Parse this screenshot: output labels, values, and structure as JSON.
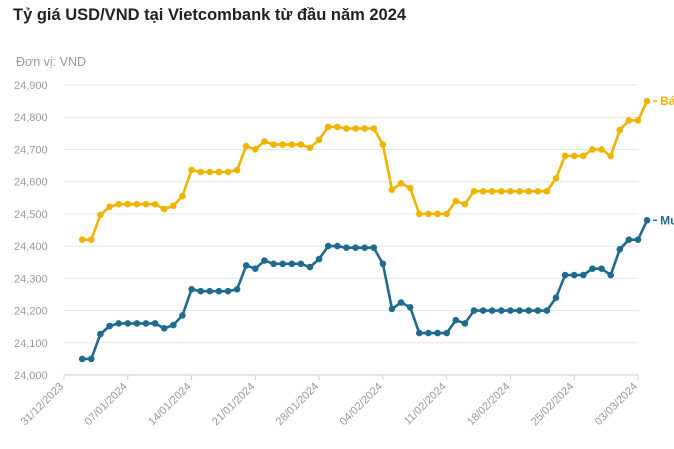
{
  "chart_data": {
    "type": "line",
    "title": "Tỷ giá USD/VND tại Vietcombank từ đầu năm 2024",
    "unit_label": "Đơn vị: VND",
    "ylim": [
      24000,
      24900
    ],
    "y_ticks": [
      "24,000",
      "24,100",
      "24,200",
      "24,300",
      "24,400",
      "24,500",
      "24,600",
      "24,700",
      "24,800",
      "24,900"
    ],
    "x_ticks": [
      "31/12/2023",
      "07/01/2024",
      "14/01/2024",
      "21/01/2024",
      "28/01/2024",
      "04/02/2024",
      "11/02/2024",
      "18/02/2024",
      "25/02/2024",
      "03/03/2024"
    ],
    "xlim": [
      "31/12/2023",
      "03/03/2024"
    ],
    "grid": "horizontal",
    "series": [
      {
        "name": "Bán",
        "color": "#F0B400",
        "points": [
          [
            "02/01/2024",
            24420
          ],
          [
            "03/01/2024",
            24420
          ],
          [
            "04/01/2024",
            24497
          ],
          [
            "05/01/2024",
            24522
          ],
          [
            "06/01/2024",
            24530
          ],
          [
            "07/01/2024",
            24530
          ],
          [
            "08/01/2024",
            24530
          ],
          [
            "09/01/2024",
            24530
          ],
          [
            "10/01/2024",
            24530
          ],
          [
            "11/01/2024",
            24515
          ],
          [
            "12/01/2024",
            24525
          ],
          [
            "13/01/2024",
            24555
          ],
          [
            "14/01/2024",
            24636
          ],
          [
            "15/01/2024",
            24630
          ],
          [
            "16/01/2024",
            24630
          ],
          [
            "17/01/2024",
            24630
          ],
          [
            "18/01/2024",
            24630
          ],
          [
            "19/01/2024",
            24636
          ],
          [
            "20/01/2024",
            24710
          ],
          [
            "21/01/2024",
            24700
          ],
          [
            "22/01/2024",
            24725
          ],
          [
            "23/01/2024",
            24715
          ],
          [
            "24/01/2024",
            24715
          ],
          [
            "25/01/2024",
            24715
          ],
          [
            "26/01/2024",
            24715
          ],
          [
            "27/01/2024",
            24705
          ],
          [
            "28/01/2024",
            24730
          ],
          [
            "29/01/2024",
            24770
          ],
          [
            "30/01/2024",
            24770
          ],
          [
            "31/01/2024",
            24765
          ],
          [
            "01/02/2024",
            24765
          ],
          [
            "02/02/2024",
            24765
          ],
          [
            "03/02/2024",
            24765
          ],
          [
            "04/02/2024",
            24715
          ],
          [
            "05/02/2024",
            24575
          ],
          [
            "06/02/2024",
            24595
          ],
          [
            "07/02/2024",
            24580
          ],
          [
            "08/02/2024",
            24500
          ],
          [
            "09/02/2024",
            24500
          ],
          [
            "10/02/2024",
            24500
          ],
          [
            "11/02/2024",
            24500
          ],
          [
            "12/02/2024",
            24540
          ],
          [
            "13/02/2024",
            24530
          ],
          [
            "14/02/2024",
            24570
          ],
          [
            "15/02/2024",
            24570
          ],
          [
            "16/02/2024",
            24570
          ],
          [
            "17/02/2024",
            24570
          ],
          [
            "18/02/2024",
            24570
          ],
          [
            "19/02/2024",
            24570
          ],
          [
            "20/02/2024",
            24570
          ],
          [
            "21/02/2024",
            24570
          ],
          [
            "22/02/2024",
            24570
          ],
          [
            "23/02/2024",
            24610
          ],
          [
            "24/02/2024",
            24680
          ],
          [
            "25/02/2024",
            24680
          ],
          [
            "26/02/2024",
            24680
          ],
          [
            "27/02/2024",
            24700
          ],
          [
            "28/02/2024",
            24700
          ],
          [
            "29/02/2024",
            24680
          ],
          [
            "01/03/2024",
            24760
          ],
          [
            "02/03/2024",
            24790
          ],
          [
            "03/03/2024",
            24790
          ],
          [
            "04/03/2024",
            24850
          ]
        ]
      },
      {
        "name": "Mua",
        "color": "#1F6A8F",
        "points": [
          [
            "02/01/2024",
            24050
          ],
          [
            "03/01/2024",
            24050
          ],
          [
            "04/01/2024",
            24127
          ],
          [
            "05/01/2024",
            24152
          ],
          [
            "06/01/2024",
            24160
          ],
          [
            "07/01/2024",
            24160
          ],
          [
            "08/01/2024",
            24160
          ],
          [
            "09/01/2024",
            24160
          ],
          [
            "10/01/2024",
            24160
          ],
          [
            "11/01/2024",
            24145
          ],
          [
            "12/01/2024",
            24155
          ],
          [
            "13/01/2024",
            24185
          ],
          [
            "14/01/2024",
            24266
          ],
          [
            "15/01/2024",
            24260
          ],
          [
            "16/01/2024",
            24260
          ],
          [
            "17/01/2024",
            24260
          ],
          [
            "18/01/2024",
            24260
          ],
          [
            "19/01/2024",
            24266
          ],
          [
            "20/01/2024",
            24340
          ],
          [
            "21/01/2024",
            24330
          ],
          [
            "22/01/2024",
            24355
          ],
          [
            "23/01/2024",
            24345
          ],
          [
            "24/01/2024",
            24345
          ],
          [
            "25/01/2024",
            24345
          ],
          [
            "26/01/2024",
            24345
          ],
          [
            "27/01/2024",
            24335
          ],
          [
            "28/01/2024",
            24360
          ],
          [
            "29/01/2024",
            24400
          ],
          [
            "30/01/2024",
            24400
          ],
          [
            "31/01/2024",
            24395
          ],
          [
            "01/02/2024",
            24395
          ],
          [
            "02/02/2024",
            24395
          ],
          [
            "03/02/2024",
            24395
          ],
          [
            "04/02/2024",
            24345
          ],
          [
            "05/02/2024",
            24205
          ],
          [
            "06/02/2024",
            24225
          ],
          [
            "07/02/2024",
            24210
          ],
          [
            "08/02/2024",
            24130
          ],
          [
            "09/02/2024",
            24130
          ],
          [
            "10/02/2024",
            24130
          ],
          [
            "11/02/2024",
            24130
          ],
          [
            "12/02/2024",
            24170
          ],
          [
            "13/02/2024",
            24160
          ],
          [
            "14/02/2024",
            24200
          ],
          [
            "15/02/2024",
            24200
          ],
          [
            "16/02/2024",
            24200
          ],
          [
            "17/02/2024",
            24200
          ],
          [
            "18/02/2024",
            24200
          ],
          [
            "19/02/2024",
            24200
          ],
          [
            "20/02/2024",
            24200
          ],
          [
            "21/02/2024",
            24200
          ],
          [
            "22/02/2024",
            24200
          ],
          [
            "23/02/2024",
            24240
          ],
          [
            "24/02/2024",
            24310
          ],
          [
            "25/02/2024",
            24310
          ],
          [
            "26/02/2024",
            24310
          ],
          [
            "27/02/2024",
            24330
          ],
          [
            "28/02/2024",
            24330
          ],
          [
            "29/02/2024",
            24310
          ],
          [
            "01/03/2024",
            24390
          ],
          [
            "02/03/2024",
            24420
          ],
          [
            "03/03/2024",
            24420
          ],
          [
            "04/03/2024",
            24480
          ]
        ]
      }
    ]
  }
}
